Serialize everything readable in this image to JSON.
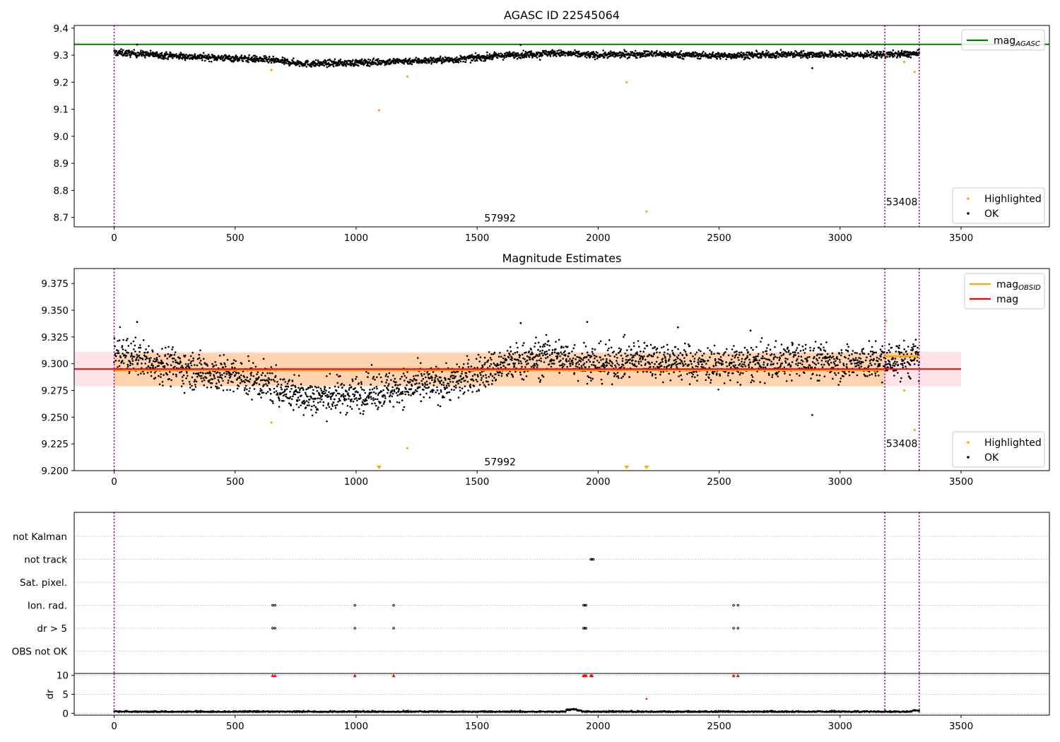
{
  "chart_data": [
    {
      "id": "p1",
      "type": "scatter",
      "title": "AGASC ID 22545064",
      "xlim": [
        -165,
        3865
      ],
      "ylim": [
        8.665,
        9.41
      ],
      "xticks": [
        0,
        500,
        1000,
        1500,
        2000,
        2500,
        3000,
        3500
      ],
      "yticks": [
        8.7,
        8.8,
        8.9,
        9.0,
        9.1,
        9.2,
        9.3,
        9.4
      ],
      "ytick_decimals": 1,
      "grid": false,
      "vlines": [
        0,
        3185,
        3327
      ],
      "hline": {
        "y": 9.34,
        "color": "#008000",
        "legend": "mag",
        "legend_sub": "AGASC"
      },
      "annotations": [
        {
          "x": 1530,
          "y": 8.685,
          "text": "57992"
        },
        {
          "x": 3190,
          "y": 8.745,
          "text": "53408"
        }
      ],
      "ok_points": {
        "color": "#000000",
        "x_start": 0,
        "x_end": 3327,
        "trend": [
          [
            0,
            9.31
          ],
          [
            100,
            9.305
          ],
          [
            300,
            9.295
          ],
          [
            600,
            9.285
          ],
          [
            800,
            9.268
          ],
          [
            1000,
            9.272
          ],
          [
            1200,
            9.278
          ],
          [
            1400,
            9.283
          ],
          [
            1600,
            9.298
          ],
          [
            1800,
            9.308
          ],
          [
            2000,
            9.3
          ],
          [
            2200,
            9.305
          ],
          [
            2500,
            9.298
          ],
          [
            2800,
            9.303
          ],
          [
            3100,
            9.301
          ],
          [
            3327,
            9.305
          ]
        ],
        "spread": 0.006,
        "extra": [
          [
            1760,
            9.283
          ],
          [
            2885,
            9.252
          ],
          [
            95,
            9.339
          ],
          [
            1680,
            9.338
          ]
        ]
      },
      "highlighted_points": {
        "color": "#ffa500",
        "points": [
          [
            650,
            9.245
          ],
          [
            1095,
            9.096
          ],
          [
            1212,
            9.221
          ],
          [
            2118,
            9.2
          ],
          [
            2200,
            8.722
          ],
          [
            3265,
            9.275
          ],
          [
            3308,
            9.238
          ],
          [
            3190,
            9.3
          ]
        ]
      },
      "legend_upper": [
        {
          "label": "mag",
          "sub": "AGASC",
          "kind": "line",
          "color": "#008000"
        }
      ],
      "legend_lower": [
        {
          "label": "Highlighted",
          "kind": "dot",
          "color": "#ffa500"
        },
        {
          "label": "OK",
          "kind": "dot",
          "color": "#000000"
        }
      ]
    },
    {
      "id": "p2",
      "type": "scatter",
      "title": "Magnitude Estimates",
      "xlim": [
        -165,
        3865
      ],
      "ylim": [
        9.2,
        9.389
      ],
      "xticks": [
        0,
        500,
        1000,
        1500,
        2000,
        2500,
        3000,
        3500
      ],
      "yticks": [
        9.2,
        9.225,
        9.25,
        9.275,
        9.3,
        9.325,
        9.35,
        9.375
      ],
      "ytick_decimals": 3,
      "grid": false,
      "vlines": [
        0,
        3185,
        3327
      ],
      "mag_line": {
        "y": 9.295,
        "x_range": [
          -165,
          3500
        ],
        "color": "#ff0000",
        "legend": "mag"
      },
      "mag_band": {
        "y_range": [
          9.279,
          9.311
        ],
        "x_range": [
          -165,
          3500
        ],
        "color": "#ffc0cb"
      },
      "obsid_segments": [
        {
          "x_range": [
            0,
            3185
          ],
          "y": 9.294,
          "band": [
            9.279,
            9.31
          ]
        },
        {
          "x_range": [
            3185,
            3327
          ],
          "y": 9.307,
          "band": [
            9.303,
            9.311
          ]
        }
      ],
      "obsid_color": "#ffa500",
      "obsid_legend": {
        "label": "mag",
        "sub": "OBSID"
      },
      "annotations": [
        {
          "x": 1530,
          "y": 9.205,
          "text": "57992"
        },
        {
          "x": 3190,
          "y": 9.222,
          "text": "53408"
        }
      ],
      "ok_points": {
        "color": "#000000",
        "x_start": 0,
        "x_end": 3327,
        "trend": [
          [
            0,
            9.31
          ],
          [
            100,
            9.305
          ],
          [
            300,
            9.295
          ],
          [
            600,
            9.285
          ],
          [
            800,
            9.268
          ],
          [
            1000,
            9.272
          ],
          [
            1200,
            9.278
          ],
          [
            1400,
            9.283
          ],
          [
            1600,
            9.298
          ],
          [
            1800,
            9.308
          ],
          [
            2000,
            9.3
          ],
          [
            2200,
            9.305
          ],
          [
            2500,
            9.298
          ],
          [
            2800,
            9.303
          ],
          [
            3100,
            9.301
          ],
          [
            3327,
            9.305
          ]
        ],
        "spread": 0.0085,
        "extra": [
          [
            1760,
            9.283
          ],
          [
            2885,
            9.252
          ],
          [
            95,
            9.339
          ],
          [
            1680,
            9.338
          ],
          [
            1955,
            9.339
          ],
          [
            2330,
            9.334
          ],
          [
            2630,
            9.331
          ]
        ]
      },
      "highlighted_points": {
        "color": "#ffa500",
        "points": [
          [
            650,
            9.245
          ],
          [
            1212,
            9.221
          ],
          [
            3265,
            9.275
          ],
          [
            3308,
            9.238
          ],
          [
            3190,
            9.34
          ]
        ]
      },
      "offscale_low_markers": {
        "color": "#ffa500",
        "x": [
          1095,
          2118,
          2200
        ]
      },
      "legend_upper": [
        {
          "label": "mag",
          "sub": "OBSID",
          "kind": "line",
          "color": "#ffa500"
        },
        {
          "label": "mag",
          "sub": "",
          "kind": "line",
          "color": "#ff0000"
        }
      ],
      "legend_lower": [
        {
          "label": "Highlighted",
          "kind": "dot",
          "color": "#ffa500"
        },
        {
          "label": "OK",
          "kind": "dot",
          "color": "#000000"
        }
      ]
    },
    {
      "id": "p3",
      "type": "scatter",
      "title": "",
      "xlim": [
        -165,
        3865
      ],
      "vlines": [
        0,
        3185,
        3327
      ],
      "flag_rows": [
        "not Kalman",
        "not track",
        "Sat. pixel.",
        "Ion. rad.",
        "dr > 5",
        "OBS not OK"
      ],
      "flags": {
        "not track": [
          1970,
          1975,
          1980
        ],
        "Ion. rad.": [
          655,
          665,
          995,
          1155,
          1940,
          1945,
          1950,
          2560,
          2578
        ],
        "dr > 5": [
          655,
          665,
          995,
          1155,
          1940,
          1945,
          1950,
          2560,
          2578
        ]
      }
    },
    {
      "id": "p4",
      "type": "scatter",
      "title": "",
      "ylabel": "dr",
      "xlim": [
        -165,
        3865
      ],
      "ylim": [
        -0.5,
        10.5
      ],
      "xticks": [
        0,
        500,
        1000,
        1500,
        2000,
        2500,
        3000,
        3500
      ],
      "yticks": [
        0,
        5,
        10
      ],
      "ytick_decimals": 0,
      "grid_y": [
        0,
        5,
        10
      ],
      "vlines": [
        0,
        3185,
        3327
      ],
      "dr_points": {
        "color": "#000000",
        "x_start": 0,
        "x_end": 3327,
        "base": 0.3,
        "spread": 0.15,
        "bumps": [
          [
            1880,
            1.1
          ],
          [
            1900,
            1.2
          ],
          [
            1920,
            0.9
          ],
          [
            3310,
            0.9
          ],
          [
            3320,
            0.7
          ],
          [
            0,
            0.6
          ]
        ]
      },
      "dr_outliers": {
        "color": "#ff0000",
        "clipped_at": 10,
        "x": [
          655,
          665,
          995,
          1155,
          1940,
          1945,
          1950,
          1970,
          1975,
          2560,
          2578
        ],
        "plain": [
          [
            2200,
            3.8
          ]
        ]
      }
    }
  ]
}
